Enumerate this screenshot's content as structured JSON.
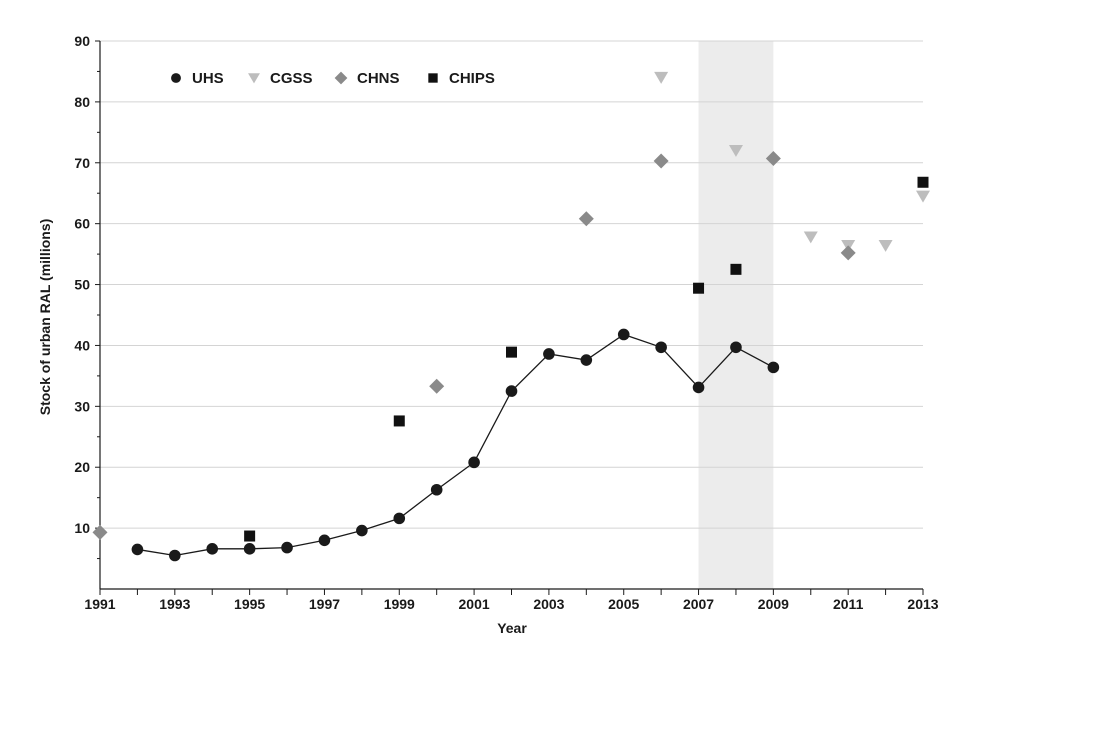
{
  "chart_data": {
    "type": "scatter",
    "xlabel": "Year",
    "ylabel": "Stock of urban RAL (millions)",
    "xlim": [
      1991,
      2013
    ],
    "ylim": [
      0,
      90
    ],
    "x_ticks": [
      "1991",
      "1993",
      "1995",
      "1997",
      "1999",
      "2001",
      "2003",
      "2005",
      "2007",
      "2009",
      "2011",
      "2013"
    ],
    "y_ticks": [
      "10",
      "20",
      "30",
      "40",
      "50",
      "60",
      "70",
      "80",
      "90"
    ],
    "grid": true,
    "legend_position": "top-left",
    "shaded_range": [
      2007,
      2009
    ],
    "series": [
      {
        "name": "UHS",
        "marker": "circle",
        "color": "#1a1a1a",
        "connected": true,
        "points": [
          [
            1992,
            6.5
          ],
          [
            1993,
            5.5
          ],
          [
            1994,
            6.6
          ],
          [
            1995,
            6.6
          ],
          [
            1996,
            6.8
          ],
          [
            1997,
            8.0
          ],
          [
            1998,
            9.6
          ],
          [
            1999,
            11.6
          ],
          [
            2000,
            16.3
          ],
          [
            2001,
            20.8
          ],
          [
            2002,
            32.5
          ],
          [
            2003,
            38.6
          ],
          [
            2004,
            37.6
          ],
          [
            2005,
            41.8
          ],
          [
            2006,
            39.7
          ],
          [
            2007,
            33.1
          ],
          [
            2008,
            39.7
          ],
          [
            2009,
            36.4
          ]
        ]
      },
      {
        "name": "CGSS",
        "marker": "triangle-down",
        "color": "#bdbdbd",
        "connected": false,
        "points": [
          [
            2006,
            84.0
          ],
          [
            2008,
            72.0
          ],
          [
            2010,
            57.8
          ],
          [
            2011,
            56.4
          ],
          [
            2012,
            56.4
          ],
          [
            2013,
            64.5
          ]
        ]
      },
      {
        "name": "CHNS",
        "marker": "diamond",
        "color": "#8a8a8a",
        "connected": false,
        "points": [
          [
            1991,
            9.3
          ],
          [
            2000,
            33.3
          ],
          [
            2004,
            60.8
          ],
          [
            2006,
            70.3
          ],
          [
            2009,
            70.7
          ],
          [
            2011,
            55.2
          ]
        ]
      },
      {
        "name": "CHIPS",
        "marker": "square",
        "color": "#111111",
        "connected": false,
        "points": [
          [
            1995,
            8.7
          ],
          [
            1999,
            27.6
          ],
          [
            2002,
            38.9
          ],
          [
            2007,
            49.4
          ],
          [
            2008,
            52.5
          ],
          [
            2013,
            66.8
          ]
        ]
      }
    ]
  }
}
